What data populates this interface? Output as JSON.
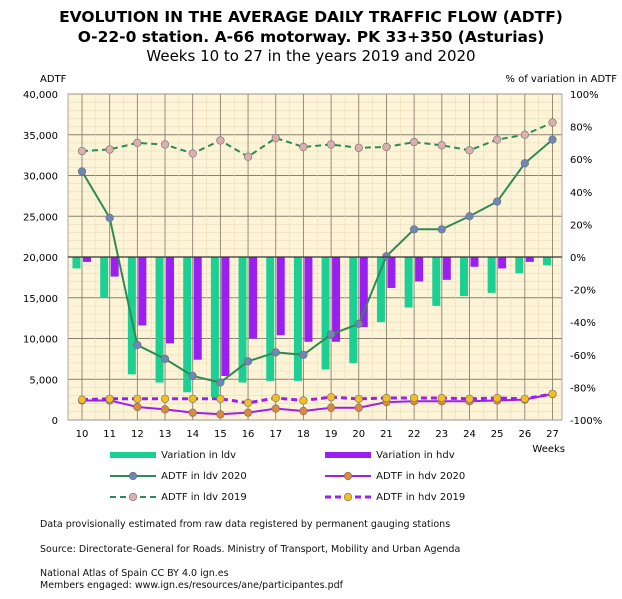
{
  "title": {
    "line1": "EVOLUTION IN THE AVERAGE DAILY TRAFFIC FLOW (ADTF)",
    "line2": "O-22-0 station. A-66 motorway. PK 33+350 (Asturias)",
    "line3": "Weeks 10 to 27 in the years 2019 and 2020"
  },
  "chart_data": {
    "type": "bar+line",
    "ylabel": "ADTF",
    "y2label": "% of variation in ADTF",
    "xlabel": "Weeks",
    "ylim": [
      0,
      40000
    ],
    "y2lim": [
      -100,
      100
    ],
    "grid": true,
    "legend_position": "bottom",
    "y_ticks": [
      "0",
      "5,000",
      "10,000",
      "15,000",
      "20,000",
      "25,000",
      "30,000",
      "35,000",
      "40,000"
    ],
    "y2_ticks": [
      "-100%",
      "-80%",
      "-60%",
      "-40%",
      "-20%",
      "0%",
      "20%",
      "40%",
      "60%",
      "80%",
      "100%"
    ],
    "categories": [
      "10",
      "11",
      "12",
      "13",
      "14",
      "15",
      "16",
      "17",
      "18",
      "19",
      "20",
      "21",
      "22",
      "23",
      "24",
      "25",
      "26",
      "27"
    ],
    "series": [
      {
        "name": "Variation in ldv",
        "type": "bar",
        "axis": "right",
        "color": "#1ccf92",
        "values": [
          -7,
          -25,
          -72,
          -77,
          -83,
          -86,
          -77,
          -76,
          -76,
          -69,
          -65,
          -40,
          -31,
          -30,
          -24,
          -22,
          -10,
          -5
        ]
      },
      {
        "name": "Variation in hdv",
        "type": "bar",
        "axis": "right",
        "color": "#9b1ff0",
        "values": [
          -3,
          -12,
          -42,
          -53,
          -63,
          -73,
          -50,
          -48,
          -52,
          -52,
          -43,
          -19,
          -15,
          -14,
          -6,
          -7,
          -3,
          0
        ]
      },
      {
        "name": "ADTF in ldv 2020",
        "type": "line",
        "axis": "left",
        "color": "#2e8b57",
        "marker": "#6b88b8",
        "dash": false,
        "values": [
          30500,
          24800,
          9200,
          7500,
          5400,
          4600,
          7200,
          8300,
          8000,
          10500,
          11800,
          20100,
          23400,
          23400,
          25000,
          26800,
          31500,
          34400
        ]
      },
      {
        "name": "ADTF in hdv 2020",
        "type": "line",
        "axis": "left",
        "color": "#9b1ff0",
        "marker": "#d98a3c",
        "dash": false,
        "values": [
          2400,
          2400,
          1600,
          1300,
          900,
          700,
          900,
          1400,
          1100,
          1500,
          1500,
          2200,
          2300,
          2300,
          2300,
          2400,
          2500,
          3200
        ]
      },
      {
        "name": "ADTF in ldv 2019",
        "type": "line",
        "axis": "left",
        "color": "#2e8b57",
        "marker": "#d9b0b0",
        "dash": true,
        "values": [
          33000,
          33200,
          34000,
          33800,
          32700,
          34300,
          32300,
          34600,
          33500,
          33800,
          33400,
          33500,
          34100,
          33700,
          33100,
          34400,
          35000,
          36500
        ]
      },
      {
        "name": "ADTF in hdv 2019",
        "type": "line",
        "axis": "left",
        "color": "#9b1ff0",
        "marker": "#f0c020",
        "dash": true,
        "values": [
          2500,
          2600,
          2600,
          2600,
          2600,
          2600,
          2100,
          2700,
          2400,
          2800,
          2600,
          2700,
          2700,
          2700,
          2600,
          2700,
          2600,
          3200
        ]
      }
    ]
  },
  "notes": {
    "provisional": "Data provisionally estimated from raw data registered by permanent gauging stations",
    "source": "Source: Directorate-General for Roads. Ministry of Transport, Mobility and Urban Agenda",
    "license": "National Atlas of Spain CC BY 4.0 ign.es",
    "members": "Members engaged: www.ign.es/resources/ane/participantes.pdf"
  }
}
